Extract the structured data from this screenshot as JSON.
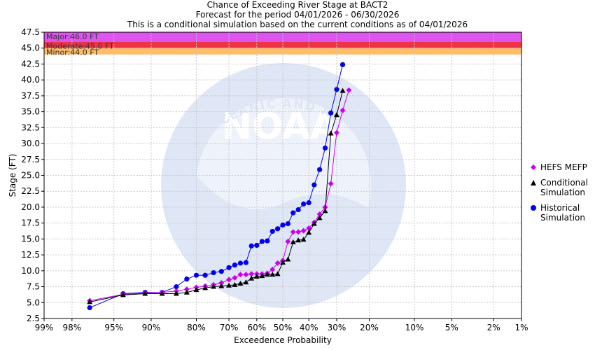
{
  "titles": [
    "Chance of Exceeding River Stage at BACT2",
    "Forecast for the period 04/01/2026 - 06/30/2026",
    "This is a conditional simulation based on the current conditions as of 04/01/2026"
  ],
  "colors": {
    "major": "#dd55ee",
    "moderate": "#ee3344",
    "minor": "#ffbb66",
    "hefs": "#cc00ee",
    "conditional": "#000000",
    "historical": "#0000ee",
    "watermark": "#dfe6f5"
  },
  "watermark_text": {
    "logo": "NOAA",
    "top": "NATIONAL OCEANIC AND ATMOSPHERIC ADMINISTRATION",
    "bottom": "U.S. DEPARTMENT OF COMMERCE"
  },
  "chart_data": {
    "type": "line",
    "xlabel": "Exceedence Probability",
    "ylabel": "Stage (FT)",
    "ylim": [
      2.5,
      47.5
    ],
    "y_ticks": [
      "2.5",
      "5.0",
      "7.5",
      "10.0",
      "12.5",
      "15.0",
      "17.5",
      "20.0",
      "22.5",
      "25.0",
      "27.5",
      "30.0",
      "32.5",
      "35.0",
      "37.5",
      "40.0",
      "42.5",
      "45.0",
      "47.5"
    ],
    "x_ticks": [
      {
        "label": "99%",
        "p": 0.99
      },
      {
        "label": "98%",
        "p": 0.98
      },
      {
        "label": "95%",
        "p": 0.95
      },
      {
        "label": "90%",
        "p": 0.9
      },
      {
        "label": "80%",
        "p": 0.8
      },
      {
        "label": "70%",
        "p": 0.7
      },
      {
        "label": "60%",
        "p": 0.6
      },
      {
        "label": "50%",
        "p": 0.5
      },
      {
        "label": "40%",
        "p": 0.4
      },
      {
        "label": "30%",
        "p": 0.3
      },
      {
        "label": "20%",
        "p": 0.2
      },
      {
        "label": "10%",
        "p": 0.1
      },
      {
        "label": "5%",
        "p": 0.05
      },
      {
        "label": "2%",
        "p": 0.02
      },
      {
        "label": "1%",
        "p": 0.01
      }
    ],
    "flood_categories": [
      {
        "label": "Major:46.0 FT",
        "from": 46.0,
        "to": 47.5,
        "color": "#dd55ee"
      },
      {
        "label": "Moderate:45.0 FT",
        "from": 45.0,
        "to": 46.0,
        "color": "#ee3344"
      },
      {
        "label": "Minor:44.0 FT",
        "from": 44.0,
        "to": 45.0,
        "color": "#ffbb66"
      }
    ],
    "series": [
      {
        "name": "Historical Simulation",
        "marker": "circle",
        "color": "#0000ee",
        "x": [
          0.97,
          0.94,
          0.91,
          0.88,
          0.85,
          0.825,
          0.8,
          0.775,
          0.75,
          0.725,
          0.7,
          0.68,
          0.66,
          0.64,
          0.62,
          0.6,
          0.58,
          0.56,
          0.54,
          0.52,
          0.5,
          0.48,
          0.46,
          0.44,
          0.42,
          0.4,
          0.38,
          0.36,
          0.34,
          0.32,
          0.3,
          0.28,
          0.26,
          0.24,
          0.22,
          0.2,
          0.18,
          0.16,
          0.14,
          0.12,
          0.1,
          0.06,
          0.035
        ],
        "y": [
          4.2,
          6.4,
          6.6,
          6.6,
          7.5,
          8.7,
          9.3,
          9.3,
          9.7,
          9.9,
          10.5,
          10.9,
          11.2,
          11.3,
          13.9,
          14.0,
          14.6,
          14.7,
          16.2,
          16.6,
          17.2,
          17.4,
          19.1,
          19.6,
          20.5,
          20.7,
          23.5,
          25.9,
          29.3,
          34.8,
          38.5,
          42.4,
          null,
          null,
          null,
          null,
          null,
          null,
          null,
          null,
          null,
          null,
          null
        ]
      },
      {
        "name": "HEFS MEFP",
        "marker": "diamond",
        "color": "#cc00ee",
        "x": [
          0.97,
          0.94,
          0.91,
          0.88,
          0.85,
          0.825,
          0.8,
          0.775,
          0.75,
          0.725,
          0.7,
          0.68,
          0.66,
          0.64,
          0.62,
          0.6,
          0.58,
          0.56,
          0.54,
          0.52,
          0.5,
          0.48,
          0.46,
          0.44,
          0.42,
          0.4,
          0.38,
          0.36,
          0.34,
          0.32,
          0.3,
          0.28,
          0.26,
          0.24,
          0.22,
          0.2,
          0.18,
          0.16,
          0.14,
          0.12,
          0.1,
          0.06,
          0.035
        ],
        "y": [
          5.3,
          6.3,
          6.5,
          6.6,
          6.8,
          7.1,
          7.4,
          7.6,
          7.8,
          8.1,
          8.6,
          8.9,
          9.4,
          9.4,
          9.5,
          9.5,
          9.5,
          9.6,
          10.2,
          11.2,
          11.6,
          14.6,
          16.1,
          16.1,
          16.3,
          16.7,
          17.6,
          18.9,
          20.0,
          23.7,
          31.7,
          35.2,
          38.4,
          null,
          null,
          null,
          null,
          null,
          null,
          null,
          null,
          null,
          null
        ]
      },
      {
        "name": "Conditional Simulation",
        "marker": "triangle",
        "color": "#000000",
        "x": [
          0.97,
          0.94,
          0.91,
          0.88,
          0.85,
          0.825,
          0.8,
          0.775,
          0.75,
          0.725,
          0.7,
          0.68,
          0.66,
          0.64,
          0.62,
          0.6,
          0.58,
          0.56,
          0.54,
          0.52,
          0.5,
          0.48,
          0.46,
          0.44,
          0.42,
          0.4,
          0.38,
          0.36,
          0.34,
          0.32,
          0.3,
          0.28,
          0.26,
          0.24,
          0.22,
          0.2,
          0.18,
          0.16,
          0.14,
          0.12,
          0.1,
          0.06,
          0.035
        ],
        "y": [
          5.1,
          6.2,
          6.4,
          6.4,
          6.4,
          6.6,
          7.0,
          7.3,
          7.5,
          7.6,
          7.7,
          7.8,
          8.0,
          8.2,
          8.8,
          9.1,
          9.2,
          9.4,
          9.4,
          9.5,
          11.3,
          11.8,
          14.5,
          14.8,
          14.9,
          16.0,
          17.4,
          18.3,
          19.4,
          31.6,
          34.5,
          38.3,
          null,
          null,
          null,
          null,
          null,
          null,
          null,
          null,
          null,
          null,
          null
        ]
      }
    ],
    "legend": [
      {
        "name": "HEFS MEFP",
        "marker": "diamond",
        "color": "#cc00ee"
      },
      {
        "name": "Conditional Simulation",
        "marker": "triangle",
        "color": "#000000"
      },
      {
        "name": "Historical Simulation",
        "marker": "circle",
        "color": "#0000ee"
      }
    ],
    "legend_position": "right",
    "grid": true
  }
}
